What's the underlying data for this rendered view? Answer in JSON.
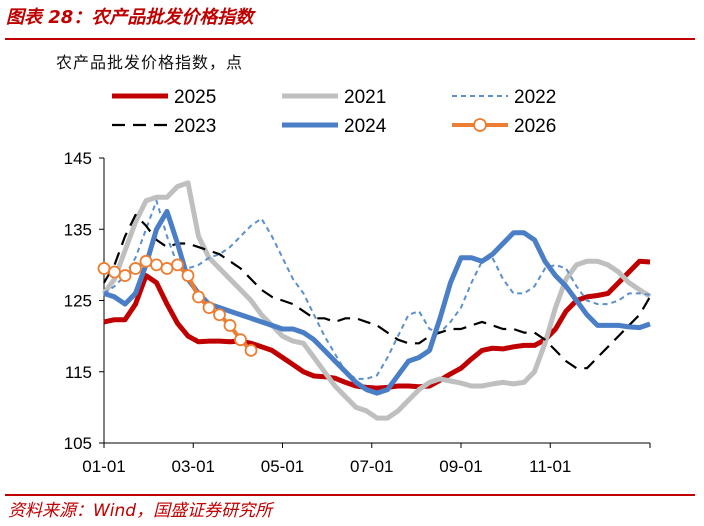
{
  "figure": {
    "title": "图表 28：农产品批发价格指数",
    "source": "资料来源：Wind，国盛证券研究所"
  },
  "chart_data": {
    "type": "line",
    "title": "",
    "subtitle": "农产品批发价格指数，点",
    "xlabel": "",
    "ylabel": "",
    "ylim": [
      105,
      145
    ],
    "y_ticks": [
      105,
      115,
      125,
      135,
      145
    ],
    "x_ticks": [
      "01-01",
      "03-01",
      "05-01",
      "07-01",
      "09-01",
      "11-01"
    ],
    "x_tick_weeks": [
      1,
      9.5,
      18,
      26.5,
      35,
      43.5
    ],
    "x_range_weeks": [
      1,
      53
    ],
    "grid": false,
    "legend_position": "top",
    "series": [
      {
        "name": "2025",
        "color": "#c00000",
        "style": "solid-thick",
        "points": [
          [
            1,
            122
          ],
          [
            2,
            122.3
          ],
          [
            3,
            122.3
          ],
          [
            4,
            124.5
          ],
          [
            5,
            128.5
          ],
          [
            6,
            127.5
          ],
          [
            7,
            124.5
          ],
          [
            8,
            121.8
          ],
          [
            9,
            120
          ],
          [
            10,
            119.2
          ],
          [
            11,
            119.3
          ],
          [
            12,
            119.3
          ],
          [
            13,
            119.2
          ],
          [
            14,
            119.3
          ],
          [
            15,
            119
          ],
          [
            16,
            118.5
          ],
          [
            17,
            118
          ],
          [
            18,
            117
          ],
          [
            19,
            116
          ],
          [
            20,
            115
          ],
          [
            21,
            114.4
          ],
          [
            22,
            114.3
          ],
          [
            23,
            114.1
          ],
          [
            24,
            113.5
          ],
          [
            25,
            113
          ],
          [
            26,
            112.8
          ],
          [
            27,
            112.7
          ],
          [
            28,
            112.8
          ],
          [
            29,
            113
          ],
          [
            30,
            113
          ],
          [
            31,
            112.9
          ],
          [
            32,
            113
          ],
          [
            33,
            113.8
          ],
          [
            34,
            114.7
          ],
          [
            35,
            115.5
          ],
          [
            36,
            116.8
          ],
          [
            37,
            118
          ],
          [
            38,
            118.3
          ],
          [
            39,
            118.2
          ],
          [
            40,
            118.5
          ],
          [
            41,
            118.7
          ],
          [
            42,
            118.7
          ],
          [
            43,
            119.5
          ],
          [
            44,
            121
          ],
          [
            45,
            123.5
          ],
          [
            46,
            125
          ],
          [
            47,
            125.5
          ],
          [
            48,
            125.7
          ],
          [
            49,
            126
          ],
          [
            50,
            127.5
          ],
          [
            51,
            129
          ],
          [
            52,
            130.5
          ],
          [
            53,
            130.4
          ]
        ]
      },
      {
        "name": "2021",
        "color": "#bfbfbf",
        "style": "solid-thick",
        "points": [
          [
            1,
            126
          ],
          [
            2,
            128
          ],
          [
            3,
            132
          ],
          [
            4,
            136
          ],
          [
            5,
            139
          ],
          [
            6,
            139.5
          ],
          [
            7,
            139.5
          ],
          [
            8,
            141
          ],
          [
            9,
            141.5
          ],
          [
            10,
            134
          ],
          [
            11,
            131
          ],
          [
            12,
            129.5
          ],
          [
            13,
            128
          ],
          [
            14,
            126.5
          ],
          [
            15,
            125
          ],
          [
            16,
            123
          ],
          [
            17,
            121.5
          ],
          [
            18,
            120
          ],
          [
            19,
            119.3
          ],
          [
            20,
            119
          ],
          [
            21,
            117
          ],
          [
            22,
            115
          ],
          [
            23,
            113
          ],
          [
            24,
            111.5
          ],
          [
            25,
            110
          ],
          [
            26,
            109.5
          ],
          [
            27,
            108.5
          ],
          [
            28,
            108.5
          ],
          [
            29,
            109.5
          ],
          [
            30,
            111
          ],
          [
            31,
            112.5
          ],
          [
            32,
            113.5
          ],
          [
            33,
            114
          ],
          [
            34,
            113.7
          ],
          [
            35,
            113.4
          ],
          [
            36,
            113
          ],
          [
            37,
            113
          ],
          [
            38,
            113.3
          ],
          [
            39,
            113.5
          ],
          [
            40,
            113.3
          ],
          [
            41,
            113.5
          ],
          [
            42,
            115
          ],
          [
            43,
            119
          ],
          [
            44,
            124
          ],
          [
            45,
            128
          ],
          [
            46,
            130
          ],
          [
            47,
            130.5
          ],
          [
            48,
            130.5
          ],
          [
            49,
            130
          ],
          [
            50,
            129
          ],
          [
            51,
            127.5
          ],
          [
            52,
            126.5
          ],
          [
            53,
            125.6
          ]
        ]
      },
      {
        "name": "2022",
        "color": "#5b8fd0",
        "style": "dashed-short",
        "points": [
          [
            1,
            126
          ],
          [
            2,
            127
          ],
          [
            3,
            128.5
          ],
          [
            4,
            131
          ],
          [
            5,
            135
          ],
          [
            6,
            139
          ],
          [
            7,
            134
          ],
          [
            8,
            130
          ],
          [
            9,
            129.5
          ],
          [
            10,
            130
          ],
          [
            11,
            131
          ],
          [
            12,
            131.5
          ],
          [
            13,
            132.5
          ],
          [
            14,
            134
          ],
          [
            15,
            135.5
          ],
          [
            16,
            136.5
          ],
          [
            17,
            134
          ],
          [
            18,
            131
          ],
          [
            19,
            128
          ],
          [
            20,
            126
          ],
          [
            21,
            123
          ],
          [
            22,
            120
          ],
          [
            23,
            117.5
          ],
          [
            24,
            115
          ],
          [
            25,
            114
          ],
          [
            26,
            114
          ],
          [
            27,
            114.5
          ],
          [
            28,
            117
          ],
          [
            29,
            120
          ],
          [
            30,
            123
          ],
          [
            31,
            123.5
          ],
          [
            32,
            121
          ],
          [
            33,
            120.5
          ],
          [
            34,
            122
          ],
          [
            35,
            124
          ],
          [
            36,
            127.5
          ],
          [
            37,
            130.5
          ],
          [
            38,
            131
          ],
          [
            39,
            128
          ],
          [
            40,
            126
          ],
          [
            41,
            126
          ],
          [
            42,
            127
          ],
          [
            43,
            129.5
          ],
          [
            44,
            130
          ],
          [
            45,
            129.5
          ],
          [
            46,
            127
          ],
          [
            47,
            125
          ],
          [
            48,
            124.5
          ],
          [
            49,
            124.5
          ],
          [
            50,
            125
          ],
          [
            51,
            126
          ],
          [
            52,
            126
          ],
          [
            53,
            125.8
          ]
        ]
      },
      {
        "name": "2023",
        "color": "#000000",
        "style": "dashed-long",
        "points": [
          [
            1,
            127.5
          ],
          [
            2,
            130
          ],
          [
            3,
            134
          ],
          [
            4,
            137
          ],
          [
            5,
            135.5
          ],
          [
            6,
            133.5
          ],
          [
            7,
            132.5
          ],
          [
            8,
            133
          ],
          [
            9,
            133
          ],
          [
            10,
            132.5
          ],
          [
            11,
            132
          ],
          [
            12,
            131.5
          ],
          [
            13,
            130.5
          ],
          [
            14,
            129.5
          ],
          [
            15,
            128
          ],
          [
            16,
            126.5
          ],
          [
            17,
            125.5
          ],
          [
            18,
            125
          ],
          [
            19,
            124.5
          ],
          [
            20,
            123.5
          ],
          [
            21,
            122.5
          ],
          [
            22,
            122.5
          ],
          [
            23,
            122
          ],
          [
            24,
            122.5
          ],
          [
            25,
            122.5
          ],
          [
            26,
            122
          ],
          [
            27,
            121.5
          ],
          [
            28,
            120.5
          ],
          [
            29,
            119.5
          ],
          [
            30,
            119
          ],
          [
            31,
            119
          ],
          [
            32,
            120
          ],
          [
            33,
            120.5
          ],
          [
            34,
            121
          ],
          [
            35,
            121
          ],
          [
            36,
            121.5
          ],
          [
            37,
            122
          ],
          [
            38,
            121.5
          ],
          [
            39,
            121
          ],
          [
            40,
            121
          ],
          [
            41,
            120.5
          ],
          [
            42,
            120.5
          ],
          [
            43,
            119.5
          ],
          [
            44,
            118
          ],
          [
            45,
            116.5
          ],
          [
            46,
            115.5
          ],
          [
            47,
            115.5
          ],
          [
            48,
            117
          ],
          [
            49,
            118.5
          ],
          [
            50,
            120
          ],
          [
            51,
            121.5
          ],
          [
            52,
            123
          ],
          [
            53,
            125.5
          ]
        ]
      },
      {
        "name": "2024",
        "color": "#4a7ec6",
        "style": "solid-thick",
        "points": [
          [
            1,
            126
          ],
          [
            2,
            125.5
          ],
          [
            3,
            124.5
          ],
          [
            4,
            126
          ],
          [
            5,
            130
          ],
          [
            6,
            135
          ],
          [
            7,
            137.5
          ],
          [
            8,
            133
          ],
          [
            9,
            128
          ],
          [
            10,
            126
          ],
          [
            11,
            124.5
          ],
          [
            12,
            124
          ],
          [
            13,
            123.5
          ],
          [
            14,
            123
          ],
          [
            15,
            122.5
          ],
          [
            16,
            122
          ],
          [
            17,
            121.5
          ],
          [
            18,
            121
          ],
          [
            19,
            121
          ],
          [
            20,
            120.5
          ],
          [
            21,
            119.5
          ],
          [
            22,
            118
          ],
          [
            23,
            116.5
          ],
          [
            24,
            115
          ],
          [
            25,
            113.5
          ],
          [
            26,
            112.5
          ],
          [
            27,
            112
          ],
          [
            28,
            112.5
          ],
          [
            29,
            114.5
          ],
          [
            30,
            116.5
          ],
          [
            31,
            117
          ],
          [
            32,
            118
          ],
          [
            33,
            122.5
          ],
          [
            34,
            127.5
          ],
          [
            35,
            131
          ],
          [
            36,
            131
          ],
          [
            37,
            130.5
          ],
          [
            38,
            131.5
          ],
          [
            39,
            133
          ],
          [
            40,
            134.5
          ],
          [
            41,
            134.5
          ],
          [
            42,
            133.5
          ],
          [
            43,
            130.5
          ],
          [
            44,
            128.5
          ],
          [
            45,
            127
          ],
          [
            46,
            125
          ],
          [
            47,
            123
          ],
          [
            48,
            121.5
          ],
          [
            49,
            121.5
          ],
          [
            50,
            121.5
          ],
          [
            51,
            121.3
          ],
          [
            52,
            121.2
          ],
          [
            53,
            121.7
          ]
        ]
      },
      {
        "name": "2026",
        "color": "#ed7d31",
        "style": "solid-markers",
        "points": [
          [
            1,
            129.5
          ],
          [
            2,
            129
          ],
          [
            3,
            128.5
          ],
          [
            4,
            129.5
          ],
          [
            5,
            130.5
          ],
          [
            6,
            130
          ],
          [
            7,
            129.5
          ],
          [
            8,
            130
          ],
          [
            9,
            128.5
          ],
          [
            10,
            125.5
          ],
          [
            11,
            124
          ],
          [
            12,
            123
          ],
          [
            13,
            121.5
          ],
          [
            14,
            119.5
          ],
          [
            15,
            118
          ]
        ]
      }
    ]
  }
}
